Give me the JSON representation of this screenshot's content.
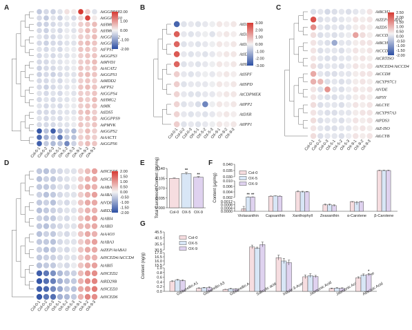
{
  "panel_letters": [
    "A",
    "B",
    "C",
    "D",
    "E",
    "F",
    "G"
  ],
  "heatmap_colors": {
    "neg": "#2c4fa3",
    "mid": "#f4f3f3",
    "pos": "#d63a33"
  },
  "bar_colors": {
    "Col-0": "#f6dde0",
    "OX-5": "#d8e6f6",
    "OX-9": "#dfd2ef"
  },
  "chart_data": [
    {
      "type": "heatmap",
      "panel": "A",
      "columns": [
        "Col-0-1",
        "Col-0-2",
        "Col-0-3",
        "OX-5-1",
        "OX-5-2",
        "OX-5-3",
        "OX-9-1",
        "OX-9-2",
        "OX-9-3"
      ],
      "rows": [
        "AtGGPPS8",
        "AtGGPPS10",
        "AtHMGS",
        "AtHMG1",
        "AtGGPPS2",
        "AtGGPPS1",
        "AtFPS1",
        "AtGGPS3",
        "AtMVD1",
        "AtACAT2",
        "AtGGPS1",
        "AtMDD2",
        "AtFPS2",
        "AtGGPS4",
        "AtHMG2",
        "AtMK",
        "AtIDS5",
        "AtGGPPS9",
        "AtPMVK",
        "AtGGPS2",
        "AtAACT1",
        "AtGGPS6"
      ],
      "colorbar_ticks": [
        "2.00",
        "1.00",
        "0.00",
        "-1.00",
        "-2.00"
      ],
      "values": [
        [
          -0.5,
          -0.3,
          -0.4,
          -0.2,
          0.2,
          0.1,
          2.0,
          0.4,
          -0.2
        ],
        [
          -0.3,
          -0.5,
          -0.2,
          -0.4,
          -0.1,
          -0.3,
          0.3,
          1.9,
          0.1
        ],
        [
          -0.4,
          -0.4,
          -0.3,
          -0.2,
          -0.2,
          -0.1,
          0.4,
          0.5,
          0.6
        ],
        [
          -0.3,
          -0.4,
          -0.2,
          -0.3,
          -0.1,
          -0.2,
          0.3,
          0.6,
          0.5
        ],
        [
          -0.2,
          -0.3,
          -0.3,
          -0.2,
          -0.1,
          -0.1,
          0.4,
          0.4,
          0.6
        ],
        [
          -0.3,
          -0.4,
          -0.3,
          -0.3,
          -0.2,
          -0.2,
          0.5,
          0.6,
          0.5
        ],
        [
          -0.2,
          -0.3,
          -0.2,
          -0.3,
          -0.1,
          -0.1,
          0.5,
          0.5,
          0.4
        ],
        [
          -0.3,
          -0.2,
          -0.3,
          -0.2,
          -0.2,
          -0.1,
          0.4,
          0.5,
          0.5
        ],
        [
          -0.3,
          -0.3,
          -0.2,
          -0.2,
          -0.1,
          -0.1,
          0.4,
          0.5,
          0.6
        ],
        [
          -0.4,
          -0.3,
          -0.3,
          -0.2,
          -0.2,
          -0.1,
          0.5,
          0.4,
          0.5
        ],
        [
          -0.4,
          -0.3,
          -0.4,
          -0.3,
          -0.2,
          -0.2,
          0.5,
          0.6,
          0.5
        ],
        [
          -0.3,
          -0.3,
          -0.2,
          -0.3,
          -0.1,
          -0.2,
          0.4,
          0.5,
          0.4
        ],
        [
          -0.3,
          -0.4,
          -0.3,
          -0.2,
          -0.2,
          -0.1,
          0.5,
          0.6,
          0.5
        ],
        [
          -0.2,
          -0.3,
          -0.2,
          -0.3,
          -0.1,
          -0.2,
          0.4,
          0.4,
          0.5
        ],
        [
          -0.3,
          -0.2,
          -0.3,
          -0.2,
          -0.2,
          -0.1,
          0.5,
          0.4,
          0.6
        ],
        [
          -0.2,
          -0.3,
          -0.2,
          -0.3,
          -0.1,
          -0.1,
          0.4,
          0.5,
          0.5
        ],
        [
          -0.3,
          -0.3,
          -0.3,
          -0.2,
          -0.2,
          -0.2,
          0.5,
          0.6,
          0.4
        ],
        [
          -0.2,
          -0.3,
          -0.2,
          -0.3,
          -0.1,
          -0.1,
          0.4,
          0.5,
          0.5
        ],
        [
          -0.3,
          -0.3,
          -0.3,
          -0.2,
          -0.2,
          -0.1,
          0.5,
          0.4,
          0.5
        ],
        [
          -1.9,
          -0.6,
          -1.8,
          -0.8,
          -0.4,
          -0.7,
          0.3,
          0.6,
          0.4
        ],
        [
          -1.7,
          -0.8,
          -0.6,
          -1.5,
          -0.5,
          -0.6,
          0.4,
          0.5,
          0.4
        ],
        [
          -1.8,
          -0.5,
          -0.7,
          -0.6,
          -1.3,
          -0.4,
          0.4,
          0.6,
          0.5
        ]
      ]
    },
    {
      "type": "heatmap",
      "panel": "B",
      "columns": [
        "Col-0-1",
        "Col-0-2",
        "Col-0-3",
        "OX-5-1",
        "OX-5-2",
        "OX-5-3",
        "OX-9-1",
        "OX-9-2",
        "OX-9-3"
      ],
      "rows": [
        "AtDXS2",
        "AtDXS1",
        "AtDXS3",
        "AtIDS",
        "AtHDR",
        "AtISPF",
        "AtISPD",
        "AtCDPMEK",
        "AtIPP2",
        "AtDXR",
        "AtIPP1"
      ],
      "colorbar_ticks": [
        "3.00",
        "2.00",
        "1.00",
        "0.00",
        "-1.00",
        "-2.00",
        "-3.00"
      ],
      "values": [
        [
          -2.6,
          -0.3,
          -0.2,
          -0.3,
          -0.2,
          -0.1,
          0.2,
          0.1,
          0.2
        ],
        [
          2.4,
          -0.2,
          -0.3,
          -0.2,
          -0.1,
          -0.3,
          0.1,
          0.2,
          0.1
        ],
        [
          2.3,
          -0.3,
          -0.2,
          -0.3,
          -0.2,
          -0.1,
          0.2,
          0.1,
          0.2
        ],
        [
          2.5,
          -0.2,
          -0.3,
          -0.2,
          -0.3,
          -0.2,
          0.1,
          0.2,
          0.2
        ],
        [
          2.3,
          -0.3,
          -0.2,
          -0.3,
          -0.2,
          -0.1,
          0.2,
          0.1,
          0.2
        ],
        [
          0.6,
          -0.2,
          -0.3,
          -0.2,
          -0.1,
          -0.2,
          0.1,
          0.2,
          0.1
        ],
        [
          0.6,
          -0.3,
          -0.2,
          -0.2,
          -0.2,
          -0.1,
          0.2,
          0.1,
          0.2
        ],
        [
          0.5,
          -0.2,
          -0.3,
          -0.3,
          -0.2,
          -0.2,
          0.1,
          0.2,
          0.2
        ],
        [
          0.5,
          -0.3,
          -0.2,
          -0.4,
          -2.0,
          -0.1,
          0.2,
          0.1,
          0.2
        ],
        [
          0.5,
          -0.2,
          -0.3,
          -0.2,
          -0.3,
          -0.2,
          0.1,
          0.2,
          0.1
        ],
        [
          0.6,
          -0.3,
          -0.2,
          -0.3,
          -0.2,
          -0.1,
          0.2,
          0.1,
          0.2
        ]
      ]
    },
    {
      "type": "heatmap",
      "panel": "C",
      "columns": [
        "Col-0-1",
        "Col-0-2",
        "Col-0-3",
        "OX-5-1",
        "OX-5-2",
        "OX-5-3",
        "OX-9-1",
        "OX-9-2",
        "OX-9-3"
      ],
      "rows": [
        "AtBCH2",
        "AtZEP/AtABA1",
        "AtZDS",
        "AtCCD1",
        "AtBCH1",
        "AtCCD7",
        "AtCRTISO",
        "AtNCED4/AtCCD4",
        "AtCCD8",
        "AtCYP97C1",
        "AtVDE",
        "AtPSY",
        "AtLCYE",
        "AtCYP97A3",
        "AtPDS3",
        "AtZ-ISO",
        "AtLCYB"
      ],
      "colorbar_ticks": [
        "2.50",
        "2.00",
        "1.50",
        "1.00",
        "0.50",
        "0.00",
        "-0.50",
        "-1.00",
        "-1.50",
        "-2.00"
      ],
      "values": [
        [
          -0.3,
          -0.2,
          -0.4,
          -0.3,
          -0.2,
          -0.3,
          -0.2,
          -0.1,
          0.2
        ],
        [
          2.2,
          -0.3,
          -0.2,
          -0.3,
          -0.2,
          -0.1,
          0.2,
          0.1,
          0.2
        ],
        [
          1.4,
          -0.2,
          -0.3,
          -0.2,
          -0.3,
          -0.2,
          0.1,
          0.2,
          0.1
        ],
        [
          0.3,
          -0.3,
          -0.2,
          -0.3,
          -0.2,
          -0.1,
          1.1,
          0.3,
          0.1
        ],
        [
          0.2,
          -0.2,
          -0.3,
          -1.1,
          -0.2,
          -0.2,
          0.1,
          0.2,
          0.2
        ],
        [
          0.2,
          -0.3,
          -0.2,
          -0.2,
          -0.3,
          -0.1,
          0.2,
          0.1,
          0.2
        ],
        [
          0.2,
          -0.2,
          -0.3,
          -0.3,
          -0.2,
          -0.2,
          0.1,
          0.2,
          0.1
        ],
        [
          0.3,
          -0.3,
          -0.2,
          -0.2,
          -0.3,
          -0.1,
          0.2,
          0.1,
          0.2
        ],
        [
          1.0,
          -0.2,
          -0.3,
          -0.3,
          -0.2,
          -0.2,
          0.1,
          0.2,
          0.2
        ],
        [
          0.9,
          0.8,
          -0.3,
          -0.2,
          -0.3,
          -0.2,
          0.1,
          0.2,
          0.1
        ],
        [
          0.2,
          -0.3,
          1.3,
          -0.2,
          -0.3,
          -0.1,
          0.2,
          0.1,
          0.2
        ],
        [
          0.2,
          -0.2,
          -0.3,
          -0.3,
          -0.2,
          -0.2,
          0.1,
          0.2,
          0.1
        ],
        [
          0.3,
          -0.3,
          -0.2,
          -0.2,
          -0.3,
          -0.1,
          0.2,
          0.1,
          0.2
        ],
        [
          0.2,
          -0.2,
          -0.3,
          -0.3,
          -0.2,
          -0.2,
          0.1,
          0.2,
          0.2
        ],
        [
          0.3,
          -0.3,
          -0.2,
          -0.2,
          -0.3,
          -0.1,
          0.2,
          0.1,
          0.2
        ],
        [
          0.2,
          -0.2,
          -0.3,
          -0.3,
          -0.2,
          -0.2,
          0.1,
          0.2,
          0.1
        ],
        [
          0.3,
          -0.3,
          -0.2,
          -0.2,
          -0.3,
          -0.1,
          0.2,
          0.1,
          0.2
        ]
      ]
    },
    {
      "type": "heatmap",
      "panel": "D",
      "columns": [
        "Col-0-1",
        "Col-0-2",
        "Col-0-3",
        "OX-5-1",
        "OX-5-2",
        "OX-5-3",
        "OX-9-1",
        "OX-9-2",
        "OX-9-3"
      ],
      "rows": [
        "AtNCED5",
        "AtNCED9",
        "AtABA2",
        "AtABA4",
        "AtVDE",
        "AtRD29A",
        "AtABI4",
        "AtABI3",
        "AtAAO3",
        "AtABA3",
        "AtZEP/AtABA1",
        "AtNCED4/AtCCD4",
        "AtABI5",
        "AtNCED2",
        "AtRD29B",
        "AtNCED3",
        "AtNCED6"
      ],
      "colorbar_ticks": [
        "2.00",
        "1.50",
        "1.00",
        "0.50",
        "0.00",
        "-0.50",
        "-1.00",
        "-1.50",
        "-2.00"
      ],
      "values": [
        [
          -0.5,
          -0.6,
          -0.4,
          -0.3,
          -0.2,
          -0.2,
          0.3,
          0.6,
          0.9
        ],
        [
          -0.6,
          -0.4,
          -0.5,
          -0.3,
          -0.2,
          -0.1,
          0.4,
          0.7,
          0.8
        ],
        [
          -0.5,
          -0.5,
          -0.4,
          -0.2,
          -0.3,
          -0.1,
          0.5,
          0.8,
          0.7
        ],
        [
          -0.4,
          -0.6,
          -0.5,
          -0.3,
          -0.2,
          -0.2,
          0.4,
          0.7,
          0.9
        ],
        [
          -0.5,
          -0.4,
          -0.6,
          -0.2,
          -0.3,
          -0.1,
          0.5,
          0.8,
          0.8
        ],
        [
          -0.6,
          -0.5,
          -0.4,
          -0.3,
          -0.2,
          -0.2,
          0.4,
          0.7,
          0.7
        ],
        [
          -0.4,
          -0.5,
          -0.5,
          -0.2,
          -0.3,
          -0.1,
          0.5,
          0.8,
          0.9
        ],
        [
          -0.5,
          -0.6,
          -0.4,
          -0.3,
          -0.2,
          -0.2,
          0.6,
          0.7,
          0.8
        ],
        [
          -0.6,
          -0.4,
          -0.5,
          -0.2,
          -0.3,
          -0.1,
          0.5,
          0.8,
          0.7
        ],
        [
          -0.5,
          -0.5,
          -0.6,
          -0.3,
          -0.2,
          -0.2,
          0.4,
          0.7,
          0.9
        ],
        [
          -0.4,
          -0.6,
          -0.5,
          -0.2,
          -0.3,
          -0.1,
          0.5,
          0.8,
          0.8
        ],
        [
          -0.5,
          -0.4,
          -0.4,
          -0.3,
          -0.2,
          -0.2,
          0.4,
          0.7,
          0.7
        ],
        [
          -0.6,
          -0.5,
          -0.5,
          -0.2,
          -0.3,
          -0.1,
          0.5,
          0.8,
          0.9
        ],
        [
          -1.8,
          -1.5,
          -1.2,
          -0.7,
          -0.5,
          -0.4,
          0.6,
          1.0,
          1.1
        ],
        [
          -1.9,
          -1.6,
          -1.4,
          -0.8,
          -0.6,
          -0.5,
          0.7,
          1.1,
          1.2
        ],
        [
          -1.8,
          -1.7,
          -1.3,
          -0.9,
          -0.5,
          -0.6,
          0.8,
          1.0,
          1.3
        ],
        [
          -1.9,
          -1.5,
          -1.6,
          -0.8,
          -0.7,
          -0.5,
          0.7,
          1.2,
          1.1
        ]
      ]
    },
    {
      "type": "bar",
      "panel": "E",
      "categories": [
        "Col-0",
        "OX-5",
        "OX-9"
      ],
      "values": [
        0.105,
        0.122,
        0.109
      ],
      "errors": [
        0.001,
        0.004,
        0.002
      ],
      "significance": [
        "",
        "**",
        "**"
      ],
      "ylabel": "Total Carotenoid Content (μg/mg)",
      "ylim": [
        0,
        0.14
      ],
      "yticks": [
        "0.000",
        "0.035",
        "0.070",
        "0.105",
        "0.140"
      ]
    },
    {
      "type": "bar",
      "panel": "F",
      "categories": [
        "Violaxanthin",
        "Capsanthin",
        "Xanthophyll",
        "Zeaxanthin",
        "α-Carotene",
        "β-Carotene"
      ],
      "series": [
        {
          "name": "Col-0",
          "values": [
            0.0003,
            0.0026,
            0.0048,
            0.0008,
            0.0012,
            0.035
          ],
          "errors": [
            0.0003,
            0.0001,
            0.0003,
            0.0001,
            0.0001,
            0.0003
          ]
        },
        {
          "name": "OX-5",
          "values": [
            0.0022,
            0.0027,
            0.0047,
            0.0008,
            0.0011,
            0.035
          ],
          "errors": [
            0.0001,
            0.0001,
            0.0003,
            0.0001,
            0.0003,
            0.0003
          ]
        },
        {
          "name": "OX-9",
          "values": [
            0.0022,
            0.0026,
            0.0047,
            0.0007,
            0.0012,
            0.035
          ],
          "errors": [
            0.0001,
            0.0001,
            0.0002,
            0.0001,
            0.0001,
            0.0003
          ]
        }
      ],
      "significance": [
        [
          "",
          "**",
          "**"
        ],
        [
          "",
          "",
          ""
        ],
        [
          "",
          "",
          ""
        ],
        [
          "",
          "",
          ""
        ],
        [
          "",
          "",
          ""
        ],
        [
          "",
          "",
          ""
        ]
      ],
      "ylabel": "Content (μg/mg)",
      "yticks_upper": [
        "0.030",
        "0.035",
        "0.040"
      ],
      "yticks_mid": [
        "0.002",
        "0.004",
        "0.006",
        "0.010"
      ],
      "yticks_lower": [
        "0.0000",
        "0.0004",
        "0.0008",
        "0.0012"
      ]
    },
    {
      "type": "bar",
      "panel": "G",
      "categories": [
        "Gibberellin A1",
        "Gibberellin A3",
        "Gibberellin A4",
        "Salicylic acid",
        "Indole-3-Acetic Acid",
        "Jasmonic Acid",
        "Jasmonic Acid-Isoleucine",
        "Abscisic Acid"
      ],
      "series": [
        {
          "name": "Col-0",
          "values": [
            0.42,
            0.13,
            0.08,
            33,
            16.4,
            0.62,
            0.12,
            0.58
          ],
          "errors": [
            0.03,
            0.02,
            0.01,
            1.5,
            0.3,
            0.08,
            0.02,
            0.04
          ]
        },
        {
          "name": "OX-5",
          "values": [
            0.48,
            0.15,
            0.11,
            32,
            16.0,
            0.67,
            0.14,
            0.69
          ],
          "errors": [
            0.03,
            0.02,
            0.02,
            0.8,
            0.3,
            0.08,
            0.02,
            0.05
          ]
        },
        {
          "name": "OX-9",
          "values": [
            0.46,
            0.16,
            0.1,
            35,
            15.8,
            0.63,
            0.13,
            0.71
          ],
          "errors": [
            0.03,
            0.03,
            0.01,
            2.0,
            0.3,
            0.05,
            0.02,
            0.05
          ]
        }
      ],
      "significance": [
        [
          "",
          "",
          ""
        ],
        [
          "",
          "",
          ""
        ],
        [
          "",
          "",
          ""
        ],
        [
          "",
          "",
          ""
        ],
        [
          "",
          "",
          ""
        ],
        [
          "",
          "",
          ""
        ],
        [
          "",
          "",
          ""
        ],
        [
          "",
          "",
          "*"
        ]
      ],
      "ylabel": "Content (ng/g)",
      "yticks_upper": [
        "30.5",
        "35.5",
        "40.5",
        "45.5"
      ],
      "yticks_mid": [
        "15.5",
        "16.0",
        "16.5",
        "17.0"
      ],
      "yticks_lower": [
        "0.0",
        "0.2",
        "0.4",
        "0.6",
        "0.8",
        "1.0"
      ]
    }
  ]
}
